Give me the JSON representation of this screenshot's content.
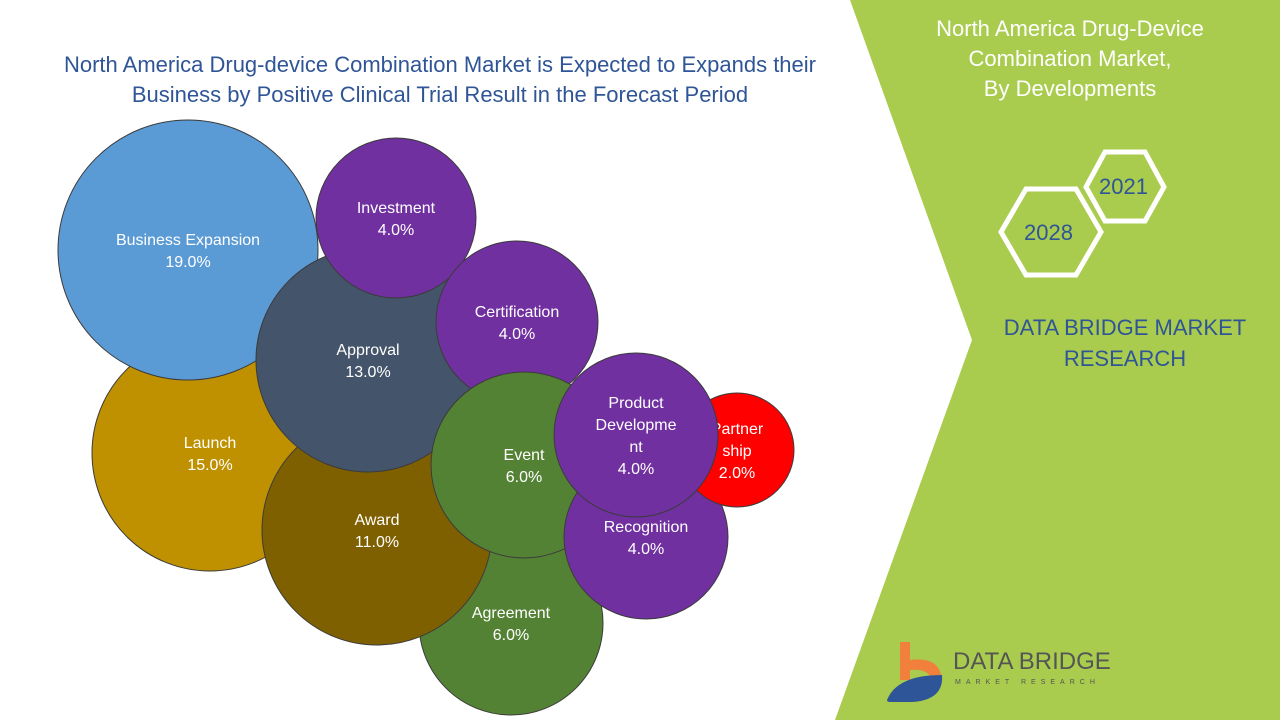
{
  "title_lines": [
    "North America Drug-device Combination Market is Expected to Expands their",
    "Business by Positive Clinical Trial Result in the Forecast Period"
  ],
  "side_panel": {
    "title_lines": [
      "North America Drug-Device",
      "Combination Market,",
      "By Developments"
    ],
    "years": [
      "2021",
      "2028"
    ],
    "brand_lines": [
      "DATA BRIDGE MARKET",
      "RESEARCH"
    ],
    "logo_text": "DATA BRIDGE",
    "logo_subtext": "MARKET RESEARCH",
    "panel_color": "#A9CC4E"
  },
  "chart_data": {
    "type": "bubble",
    "series": [
      {
        "label_lines": [
          "Agreement"
        ],
        "value": "6.0%",
        "color": "#548235"
      },
      {
        "label_lines": [
          "Launch"
        ],
        "value": "15.0%",
        "color": "#BF9000"
      },
      {
        "label_lines": [
          "Business Expansion"
        ],
        "value": "19.0%",
        "color": "#5B9BD5"
      },
      {
        "label_lines": [
          "Award"
        ],
        "value": "11.0%",
        "color": "#7F6000"
      },
      {
        "label_lines": [
          "Approval"
        ],
        "value": "13.0%",
        "color": "#44546A"
      },
      {
        "label_lines": [
          "Investment"
        ],
        "value": "4.0%",
        "color": "#7030A0"
      },
      {
        "label_lines": [
          "Certification"
        ],
        "value": "4.0%",
        "color": "#7030A0"
      },
      {
        "label_lines": [
          "Event"
        ],
        "value": "6.0%",
        "color": "#548235"
      },
      {
        "label_lines": [
          "Recognition"
        ],
        "value": "4.0%",
        "color": "#7030A0"
      },
      {
        "label_lines": [
          "Partner",
          "ship"
        ],
        "value": "2.0%",
        "color": "#FF0000"
      },
      {
        "label_lines": [
          "Product",
          "Developme",
          "nt"
        ],
        "value": "4.0%",
        "color": "#7030A0"
      }
    ]
  }
}
